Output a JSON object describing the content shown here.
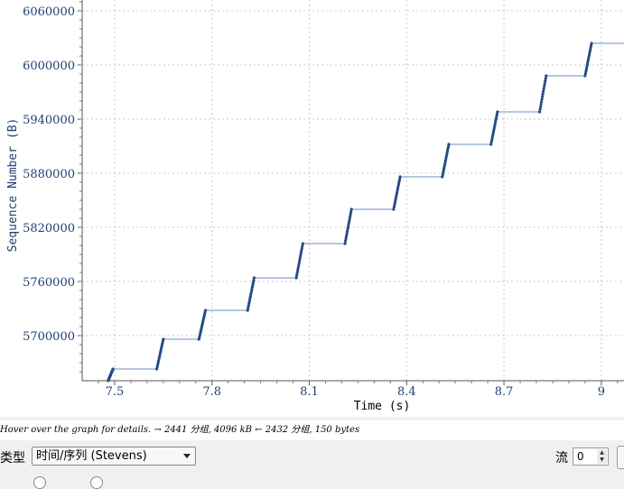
{
  "chart_data": {
    "type": "scatter",
    "xlabel": "Time (s)",
    "ylabel": "Sequence Number (B)",
    "xlim": [
      7.4,
      9.07
    ],
    "ylim": [
      5650000,
      6072000
    ],
    "x_ticks": [
      "7.5",
      "7.8",
      "8.1",
      "8.4",
      "8.7",
      "9"
    ],
    "x_tick_values": [
      7.5,
      7.8,
      8.1,
      8.4,
      8.7,
      9.0
    ],
    "y_ticks": [
      "5700000",
      "5760000",
      "5820000",
      "5880000",
      "5940000",
      "6000000",
      "6060000"
    ],
    "y_tick_values": [
      5700000,
      5760000,
      5820000,
      5880000,
      5940000,
      6000000,
      6060000
    ],
    "grid": true,
    "color": "#244a80",
    "ack_color": "#6e8fbf",
    "bursts": [
      {
        "t_start": 7.48,
        "t_end": 7.495,
        "seq_start": 5650000,
        "seq_end": 5663000
      },
      {
        "t_start": 7.63,
        "t_end": 7.65,
        "seq_start": 5663000,
        "seq_end": 5696000
      },
      {
        "t_start": 7.76,
        "t_end": 7.78,
        "seq_start": 5696000,
        "seq_end": 5728000
      },
      {
        "t_start": 7.91,
        "t_end": 7.93,
        "seq_start": 5728000,
        "seq_end": 5764000
      },
      {
        "t_start": 8.06,
        "t_end": 8.08,
        "seq_start": 5764000,
        "seq_end": 5802000
      },
      {
        "t_start": 8.21,
        "t_end": 8.23,
        "seq_start": 5802000,
        "seq_end": 5840000
      },
      {
        "t_start": 8.36,
        "t_end": 8.38,
        "seq_start": 5840000,
        "seq_end": 5876000
      },
      {
        "t_start": 8.51,
        "t_end": 8.53,
        "seq_start": 5876000,
        "seq_end": 5912000
      },
      {
        "t_start": 8.66,
        "t_end": 8.68,
        "seq_start": 5912000,
        "seq_end": 5948000
      },
      {
        "t_start": 8.81,
        "t_end": 8.83,
        "seq_start": 5948000,
        "seq_end": 5988000
      },
      {
        "t_start": 8.95,
        "t_end": 8.97,
        "seq_start": 5988000,
        "seq_end": 6024000
      }
    ]
  },
  "status": {
    "text": "Hover over the graph for details. → 2441 分组, 4096 kB ← 2432 分组, 150 bytes"
  },
  "controls": {
    "type_label": "类型",
    "type_value": "时间/序列 (Stevens)",
    "stream_label": "流",
    "stream_value": "0"
  }
}
